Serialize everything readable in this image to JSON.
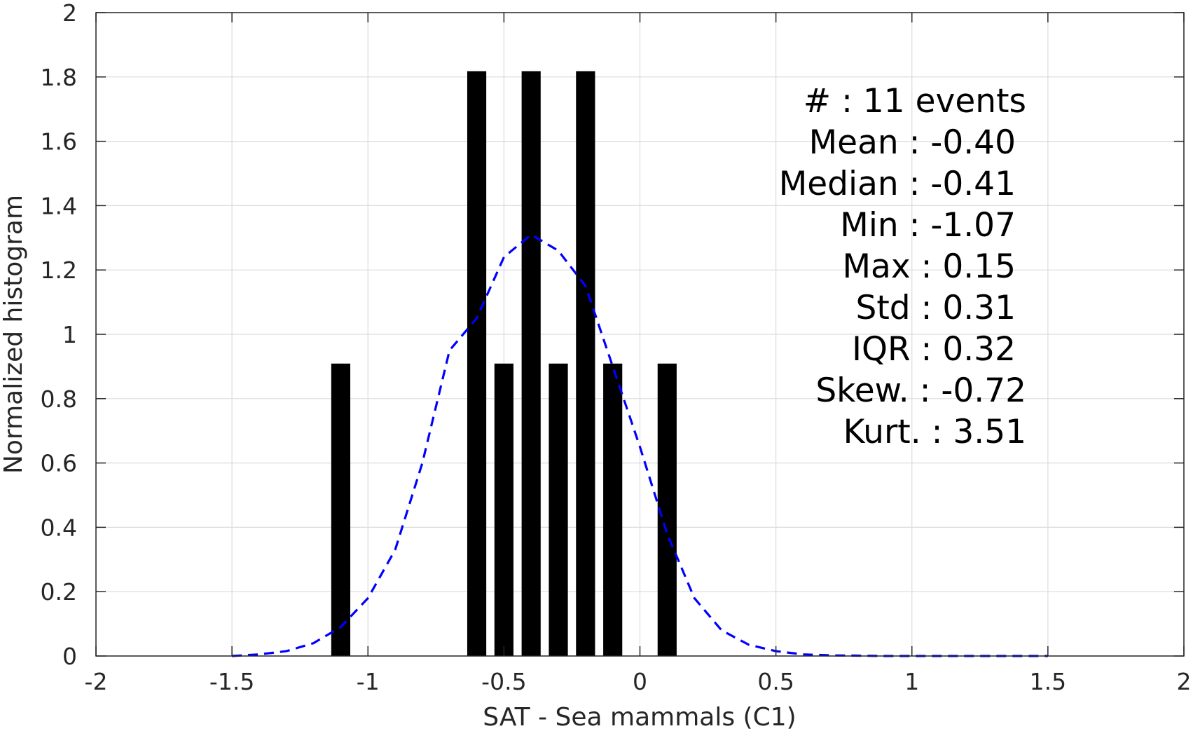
{
  "chart_data": {
    "type": "bar",
    "xlabel": "SAT - Sea mammals (C1)",
    "ylabel": "Normalized histogram",
    "xlim": [
      -2,
      2
    ],
    "ylim": [
      0,
      2
    ],
    "x_ticks": [
      -2,
      -1.5,
      -1,
      -0.5,
      0,
      0.5,
      1,
      1.5,
      2
    ],
    "x_tick_labels": [
      "-2",
      "-1.5",
      "-1",
      "-0.5",
      "0",
      "0.5",
      "1",
      "1.5",
      "2"
    ],
    "y_ticks": [
      0,
      0.2,
      0.4,
      0.6,
      0.8,
      1,
      1.2,
      1.4,
      1.6,
      1.8,
      2
    ],
    "y_tick_labels": [
      "0",
      "0.2",
      "0.4",
      "0.6",
      "0.8",
      "1",
      "1.2",
      "1.4",
      "1.6",
      "1.8",
      "2"
    ],
    "grid": true,
    "bar_color": "#000000",
    "bar_width": 0.07,
    "bars": [
      {
        "x": -1.1,
        "value": 0.909
      },
      {
        "x": -0.6,
        "value": 1.818
      },
      {
        "x": -0.5,
        "value": 0.909
      },
      {
        "x": -0.4,
        "value": 1.818
      },
      {
        "x": -0.3,
        "value": 0.909
      },
      {
        "x": -0.2,
        "value": 1.818
      },
      {
        "x": -0.1,
        "value": 0.909
      },
      {
        "x": 0.1,
        "value": 0.909
      }
    ],
    "fit_curve": {
      "style": "dashed",
      "color": "#0000ff",
      "x": [
        -1.5,
        -1.4,
        -1.3,
        -1.2,
        -1.1,
        -1.0,
        -0.9,
        -0.8,
        -0.7,
        -0.6,
        -0.5,
        -0.4,
        -0.3,
        -0.2,
        -0.1,
        0.0,
        0.1,
        0.2,
        0.3,
        0.4,
        0.5,
        0.6,
        0.7,
        0.8,
        0.9,
        1.0,
        1.1,
        1.2,
        1.3,
        1.4,
        1.5
      ],
      "y": [
        0.0,
        0.005,
        0.015,
        0.04,
        0.09,
        0.18,
        0.33,
        0.6,
        0.95,
        1.05,
        1.24,
        1.31,
        1.26,
        1.15,
        0.9,
        0.65,
        0.38,
        0.18,
        0.08,
        0.035,
        0.015,
        0.005,
        0.002,
        0.001,
        0.0,
        0.0,
        0.0,
        0.0,
        0.0,
        0.0,
        0.0
      ]
    },
    "stats": [
      {
        "label": "#  ",
        "value": "11 events"
      },
      {
        "label": "Mean",
        "value": "-0.40"
      },
      {
        "label": "Median",
        "value": "-0.41"
      },
      {
        "label": "Min",
        "value": "-1.07"
      },
      {
        "label": "Max",
        "value": "0.15"
      },
      {
        "label": "Std",
        "value": "0.31"
      },
      {
        "label": "IQR",
        "value": "0.32"
      },
      {
        "label": "Skew.",
        "value": "-0.72"
      },
      {
        "label": "Kurt.",
        "value": "3.51"
      }
    ]
  }
}
